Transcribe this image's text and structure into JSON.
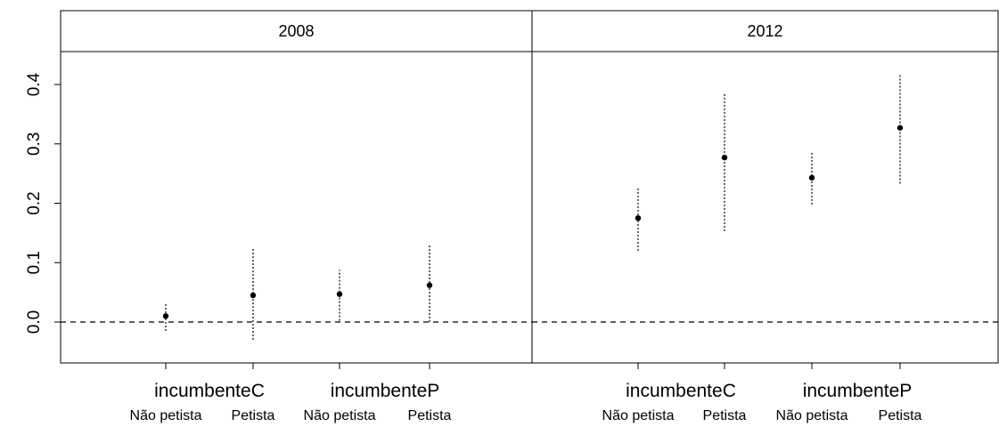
{
  "chart_data": {
    "type": "scatter",
    "ylim": [
      -0.07,
      0.47
    ],
    "yticks": [
      "0.0",
      "0.1",
      "0.2",
      "0.3",
      "0.4"
    ],
    "reference_line": 0.0,
    "panels": [
      {
        "title": "2008",
        "group_labels": [
          "incumbenteC",
          "incumbenteP"
        ],
        "sub_labels": [
          "Não petista",
          "Petista",
          "Não petista",
          "Petista"
        ],
        "points": [
          {
            "group": "incumbenteC",
            "sub": "Não petista",
            "y": 0.01,
            "lower": -0.015,
            "upper": 0.033
          },
          {
            "group": "incumbenteC",
            "sub": "Petista",
            "y": 0.045,
            "lower": -0.03,
            "upper": 0.123
          },
          {
            "group": "incumbenteP",
            "sub": "Não petista",
            "y": 0.047,
            "lower": 0.002,
            "upper": 0.088
          },
          {
            "group": "incumbenteP",
            "sub": "Petista",
            "y": 0.062,
            "lower": 0.0,
            "upper": 0.13
          }
        ]
      },
      {
        "title": "2012",
        "group_labels": [
          "incumbenteC",
          "incumbenteP"
        ],
        "sub_labels": [
          "Não petista",
          "Petista",
          "Não petista",
          "Petista"
        ],
        "points": [
          {
            "group": "incumbenteC",
            "sub": "Não petista",
            "y": 0.175,
            "lower": 0.12,
            "upper": 0.226
          },
          {
            "group": "incumbenteC",
            "sub": "Petista",
            "y": 0.277,
            "lower": 0.153,
            "upper": 0.385
          },
          {
            "group": "incumbenteP",
            "sub": "Não petista",
            "y": 0.243,
            "lower": 0.198,
            "upper": 0.285
          },
          {
            "group": "incumbenteP",
            "sub": "Petista",
            "y": 0.327,
            "lower": 0.233,
            "upper": 0.417
          }
        ]
      }
    ]
  }
}
